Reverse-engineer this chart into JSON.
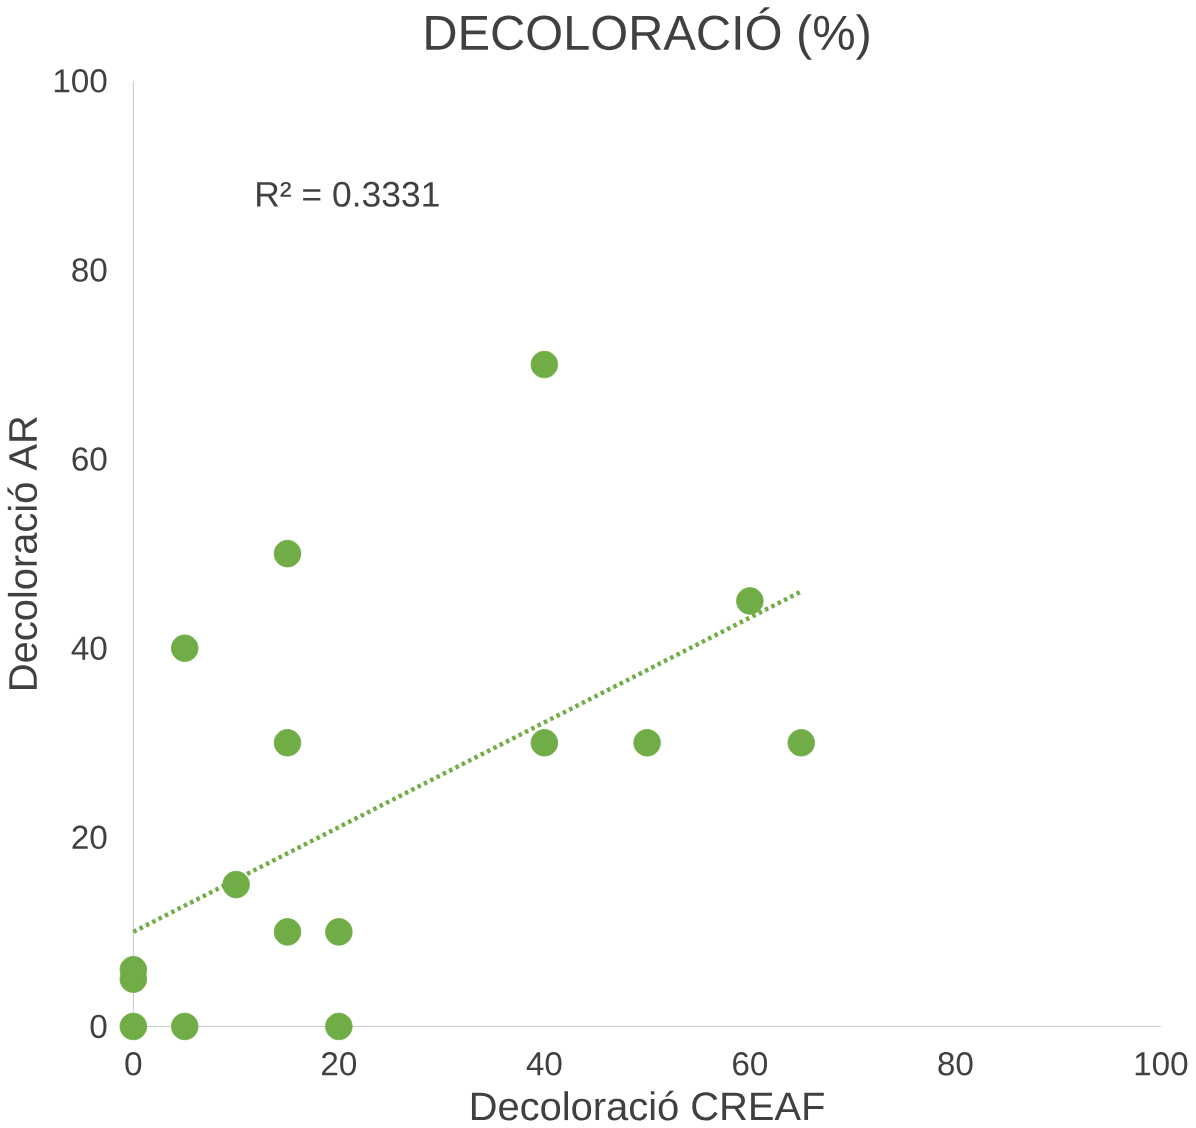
{
  "chart_data": {
    "type": "scatter",
    "title": "DECOLORACIÓ (%)",
    "xlabel": "Decoloració CREAF",
    "ylabel": "Decoloració AR",
    "annotations": [
      "R² = 0.3331"
    ],
    "series": [
      {
        "color": "#70ad47",
        "marker": "circle",
        "x": [
          0,
          0,
          0,
          5,
          20,
          5,
          15,
          15,
          10,
          15,
          20,
          40,
          40,
          50,
          60,
          65
        ],
        "values": [
          0,
          5,
          6,
          0,
          0,
          40,
          50,
          30,
          15,
          10,
          10,
          70,
          30,
          30,
          45,
          30
        ]
      },
      {
        "type": "line",
        "color": "#70ad47",
        "line_style": "dotted",
        "marker": "none",
        "x": [
          0,
          65
        ],
        "values": [
          10,
          46
        ]
      }
    ],
    "xlim": [
      0,
      100
    ],
    "ylim": [
      0,
      100
    ],
    "xticks": [
      0,
      20,
      40,
      60,
      80,
      100
    ],
    "yticks": [
      0,
      20,
      40,
      60,
      80,
      100
    ],
    "grid": false
  }
}
